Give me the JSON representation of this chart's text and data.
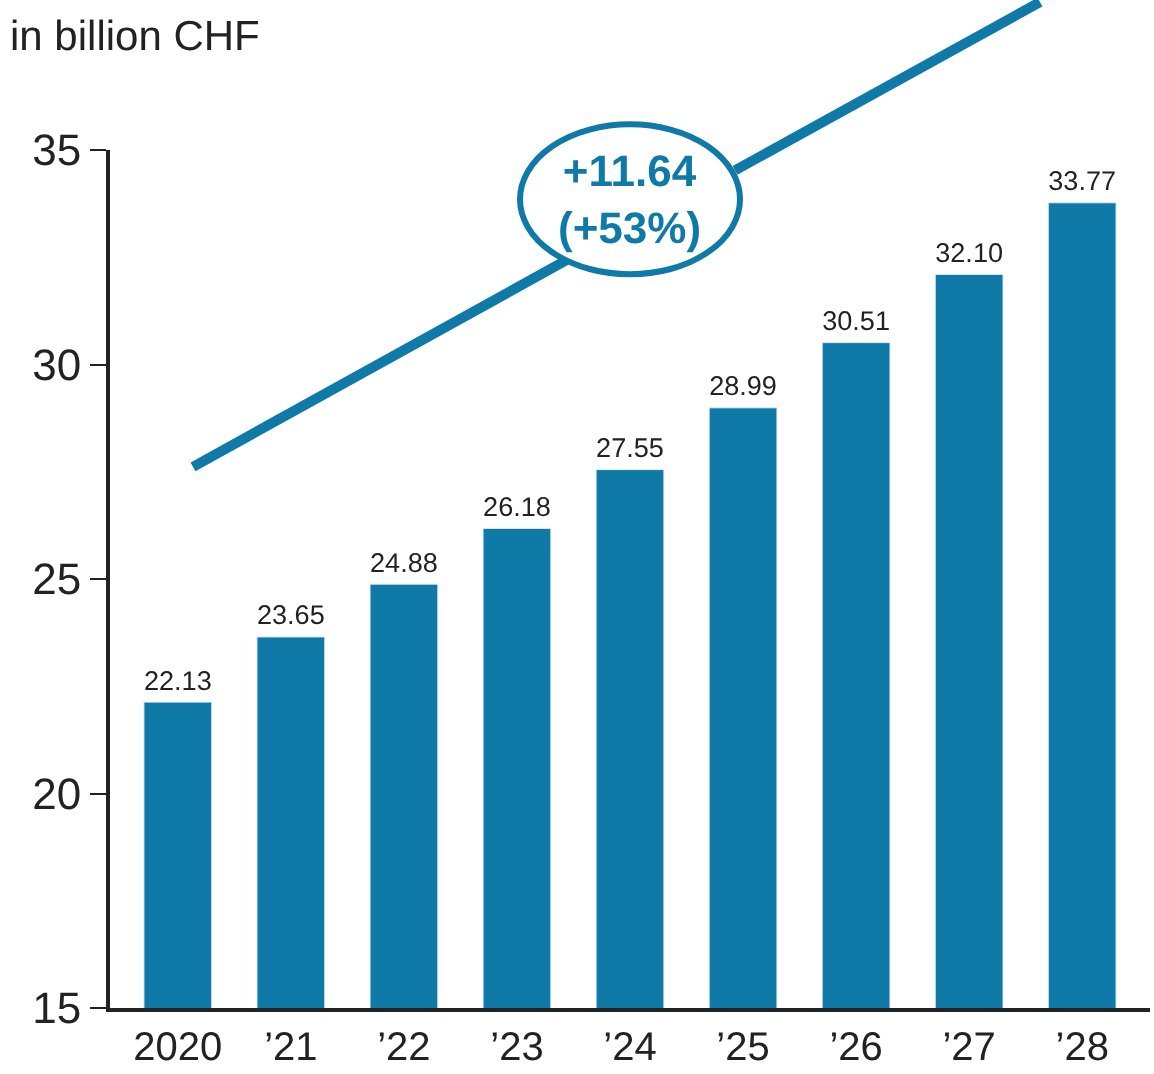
{
  "chart_data": {
    "type": "bar",
    "ylabel": "in billion CHF",
    "categories": [
      "2020",
      "’21",
      "’22",
      "’23",
      "’24",
      "’25",
      "’26",
      "’27",
      "’28"
    ],
    "values": [
      22.13,
      23.65,
      24.88,
      26.18,
      27.55,
      28.99,
      30.51,
      32.1,
      33.77
    ],
    "value_labels": [
      "22.13",
      "23.65",
      "24.88",
      "26.18",
      "27.55",
      "28.99",
      "30.51",
      "32.10",
      "33.77"
    ],
    "color": "#0f7aa8",
    "ylim": [
      15,
      35
    ],
    "yticks": [
      15,
      20,
      25,
      30,
      35
    ],
    "annotations": [
      "+11.64\n(+53%)"
    ]
  }
}
